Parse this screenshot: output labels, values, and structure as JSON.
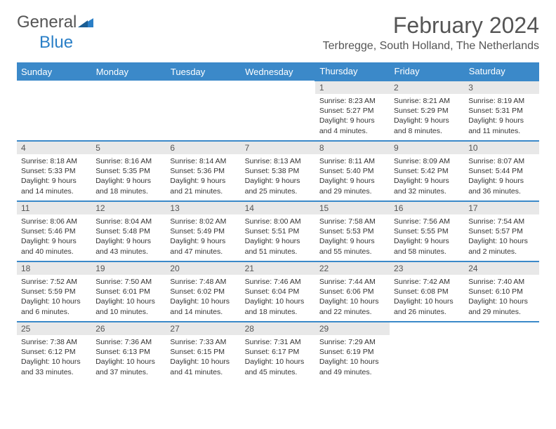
{
  "logo": {
    "general": "General",
    "blue": "Blue"
  },
  "colors": {
    "header_bg": "#3b89c9",
    "header_text": "#ffffff",
    "daynum_bg": "#e8e8e8",
    "text": "#333333",
    "title_text": "#555555",
    "logo_blue": "#2a7fc7",
    "border": "#3b89c9"
  },
  "title": "February 2024",
  "location": "Terbregge, South Holland, The Netherlands",
  "weekdays": [
    "Sunday",
    "Monday",
    "Tuesday",
    "Wednesday",
    "Thursday",
    "Friday",
    "Saturday"
  ],
  "grid": {
    "first_weekday_index": 4,
    "days_in_month": 29
  },
  "days": {
    "1": {
      "sunrise": "Sunrise: 8:23 AM",
      "sunset": "Sunset: 5:27 PM",
      "daylight1": "Daylight: 9 hours",
      "daylight2": "and 4 minutes."
    },
    "2": {
      "sunrise": "Sunrise: 8:21 AM",
      "sunset": "Sunset: 5:29 PM",
      "daylight1": "Daylight: 9 hours",
      "daylight2": "and 8 minutes."
    },
    "3": {
      "sunrise": "Sunrise: 8:19 AM",
      "sunset": "Sunset: 5:31 PM",
      "daylight1": "Daylight: 9 hours",
      "daylight2": "and 11 minutes."
    },
    "4": {
      "sunrise": "Sunrise: 8:18 AM",
      "sunset": "Sunset: 5:33 PM",
      "daylight1": "Daylight: 9 hours",
      "daylight2": "and 14 minutes."
    },
    "5": {
      "sunrise": "Sunrise: 8:16 AM",
      "sunset": "Sunset: 5:35 PM",
      "daylight1": "Daylight: 9 hours",
      "daylight2": "and 18 minutes."
    },
    "6": {
      "sunrise": "Sunrise: 8:14 AM",
      "sunset": "Sunset: 5:36 PM",
      "daylight1": "Daylight: 9 hours",
      "daylight2": "and 21 minutes."
    },
    "7": {
      "sunrise": "Sunrise: 8:13 AM",
      "sunset": "Sunset: 5:38 PM",
      "daylight1": "Daylight: 9 hours",
      "daylight2": "and 25 minutes."
    },
    "8": {
      "sunrise": "Sunrise: 8:11 AM",
      "sunset": "Sunset: 5:40 PM",
      "daylight1": "Daylight: 9 hours",
      "daylight2": "and 29 minutes."
    },
    "9": {
      "sunrise": "Sunrise: 8:09 AM",
      "sunset": "Sunset: 5:42 PM",
      "daylight1": "Daylight: 9 hours",
      "daylight2": "and 32 minutes."
    },
    "10": {
      "sunrise": "Sunrise: 8:07 AM",
      "sunset": "Sunset: 5:44 PM",
      "daylight1": "Daylight: 9 hours",
      "daylight2": "and 36 minutes."
    },
    "11": {
      "sunrise": "Sunrise: 8:06 AM",
      "sunset": "Sunset: 5:46 PM",
      "daylight1": "Daylight: 9 hours",
      "daylight2": "and 40 minutes."
    },
    "12": {
      "sunrise": "Sunrise: 8:04 AM",
      "sunset": "Sunset: 5:48 PM",
      "daylight1": "Daylight: 9 hours",
      "daylight2": "and 43 minutes."
    },
    "13": {
      "sunrise": "Sunrise: 8:02 AM",
      "sunset": "Sunset: 5:49 PM",
      "daylight1": "Daylight: 9 hours",
      "daylight2": "and 47 minutes."
    },
    "14": {
      "sunrise": "Sunrise: 8:00 AM",
      "sunset": "Sunset: 5:51 PM",
      "daylight1": "Daylight: 9 hours",
      "daylight2": "and 51 minutes."
    },
    "15": {
      "sunrise": "Sunrise: 7:58 AM",
      "sunset": "Sunset: 5:53 PM",
      "daylight1": "Daylight: 9 hours",
      "daylight2": "and 55 minutes."
    },
    "16": {
      "sunrise": "Sunrise: 7:56 AM",
      "sunset": "Sunset: 5:55 PM",
      "daylight1": "Daylight: 9 hours",
      "daylight2": "and 58 minutes."
    },
    "17": {
      "sunrise": "Sunrise: 7:54 AM",
      "sunset": "Sunset: 5:57 PM",
      "daylight1": "Daylight: 10 hours",
      "daylight2": "and 2 minutes."
    },
    "18": {
      "sunrise": "Sunrise: 7:52 AM",
      "sunset": "Sunset: 5:59 PM",
      "daylight1": "Daylight: 10 hours",
      "daylight2": "and 6 minutes."
    },
    "19": {
      "sunrise": "Sunrise: 7:50 AM",
      "sunset": "Sunset: 6:01 PM",
      "daylight1": "Daylight: 10 hours",
      "daylight2": "and 10 minutes."
    },
    "20": {
      "sunrise": "Sunrise: 7:48 AM",
      "sunset": "Sunset: 6:02 PM",
      "daylight1": "Daylight: 10 hours",
      "daylight2": "and 14 minutes."
    },
    "21": {
      "sunrise": "Sunrise: 7:46 AM",
      "sunset": "Sunset: 6:04 PM",
      "daylight1": "Daylight: 10 hours",
      "daylight2": "and 18 minutes."
    },
    "22": {
      "sunrise": "Sunrise: 7:44 AM",
      "sunset": "Sunset: 6:06 PM",
      "daylight1": "Daylight: 10 hours",
      "daylight2": "and 22 minutes."
    },
    "23": {
      "sunrise": "Sunrise: 7:42 AM",
      "sunset": "Sunset: 6:08 PM",
      "daylight1": "Daylight: 10 hours",
      "daylight2": "and 26 minutes."
    },
    "24": {
      "sunrise": "Sunrise: 7:40 AM",
      "sunset": "Sunset: 6:10 PM",
      "daylight1": "Daylight: 10 hours",
      "daylight2": "and 29 minutes."
    },
    "25": {
      "sunrise": "Sunrise: 7:38 AM",
      "sunset": "Sunset: 6:12 PM",
      "daylight1": "Daylight: 10 hours",
      "daylight2": "and 33 minutes."
    },
    "26": {
      "sunrise": "Sunrise: 7:36 AM",
      "sunset": "Sunset: 6:13 PM",
      "daylight1": "Daylight: 10 hours",
      "daylight2": "and 37 minutes."
    },
    "27": {
      "sunrise": "Sunrise: 7:33 AM",
      "sunset": "Sunset: 6:15 PM",
      "daylight1": "Daylight: 10 hours",
      "daylight2": "and 41 minutes."
    },
    "28": {
      "sunrise": "Sunrise: 7:31 AM",
      "sunset": "Sunset: 6:17 PM",
      "daylight1": "Daylight: 10 hours",
      "daylight2": "and 45 minutes."
    },
    "29": {
      "sunrise": "Sunrise: 7:29 AM",
      "sunset": "Sunset: 6:19 PM",
      "daylight1": "Daylight: 10 hours",
      "daylight2": "and 49 minutes."
    }
  }
}
